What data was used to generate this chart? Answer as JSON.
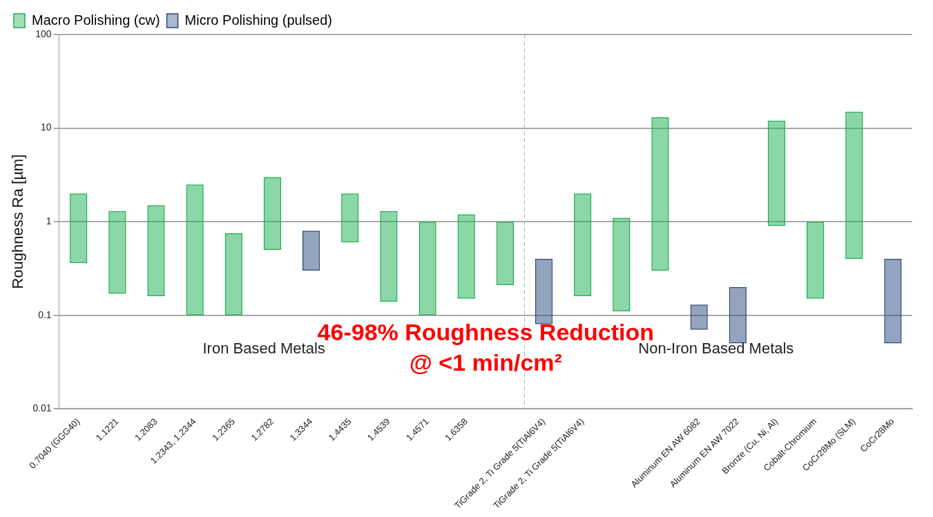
{
  "chart_data": {
    "type": "bar",
    "ylabel": "Roughness Ra [µm]",
    "categories": [
      "0.7040 (GGG40)",
      "1.1221",
      "1.2083",
      "1.2343, 1.2344",
      "1.2365",
      "1.2782",
      "1.3344",
      "1.4435",
      "1.4539",
      "1.4571",
      "1.6358",
      null,
      "TiGrade 2, Ti Grade 5(TiAl6V4)",
      "TiGrade 2, Ti Grade 5(TiAl6V4)",
      null,
      null,
      "Aluminum EN AW 6082",
      "Aluminum EN AW 7022",
      "Bronze (Cu, Ni, Al)",
      "Cobalt-Chromium",
      "CoCr28Mo (SLM)",
      "CoCr28Mo"
    ],
    "series": [
      {
        "name": "Macro Polishing (cw)",
        "color": "#1aaf4f",
        "base": [
          0.36,
          0.17,
          0.16,
          0.1,
          0.1,
          0.5,
          null,
          0.6,
          0.14,
          0.1,
          0.15,
          0.21,
          null,
          0.16,
          0.11,
          0.3,
          null,
          null,
          0.9,
          0.15,
          0.4,
          null
        ],
        "values": [
          1.64,
          1.13,
          1.34,
          2.4,
          0.65,
          2.5,
          null,
          1.4,
          1.16,
          0.9,
          1.05,
          0.79,
          null,
          1.84,
          0.99,
          12.7,
          null,
          null,
          11.1,
          0.85,
          14.6,
          null
        ]
      },
      {
        "name": "Micro Polishing (pulsed)",
        "color": "#2a4a7f",
        "base": [
          null,
          null,
          null,
          null,
          null,
          null,
          0.3,
          null,
          null,
          null,
          null,
          null,
          0.08,
          null,
          null,
          null,
          0.07,
          0.05,
          null,
          null,
          null,
          0.05
        ],
        "values": [
          null,
          null,
          null,
          null,
          null,
          null,
          0.5,
          null,
          null,
          null,
          null,
          null,
          0.32,
          null,
          null,
          null,
          0.06,
          0.15,
          null,
          null,
          null,
          0.35
        ]
      }
    ],
    "log": "y",
    "ylim": [
      0.01,
      100
    ],
    "yticks": [
      0.01,
      0.1,
      1,
      10,
      100
    ],
    "grid": "y",
    "legend": "top left",
    "ref_lines": [
      {
        "axis": "x",
        "value": "TiGrade 2, Ti Grade 5(TiAl6V4)",
        "color": "#b0b0b0",
        "line_style": "dashed"
      }
    ],
    "annotations": [
      "46-98% Roughness Reduction",
      "@ <1 min/cm²",
      "Iron Based Metals",
      "Non-Iron Based Metals"
    ]
  }
}
